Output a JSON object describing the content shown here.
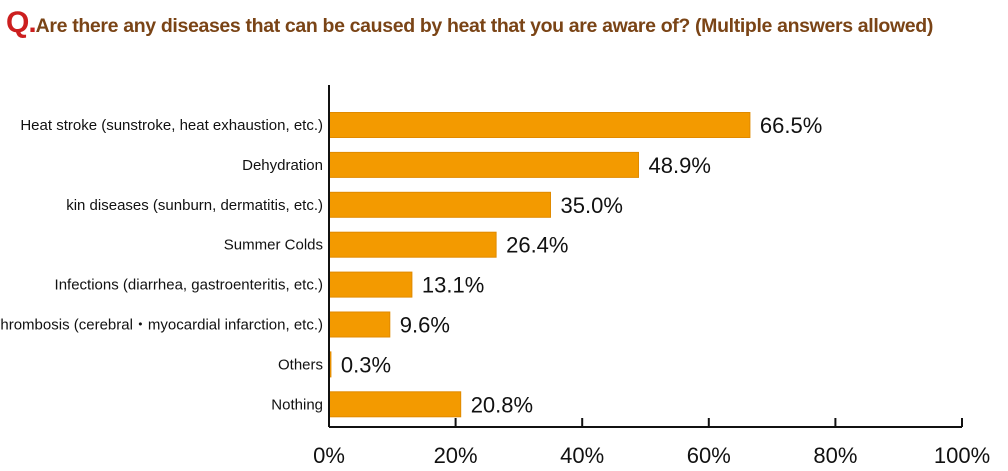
{
  "title": {
    "prefix": "Q.",
    "text": "Are there any diseases that can be caused by heat that you are aware of? (Multiple answers allowed)"
  },
  "colors": {
    "bar_fill": "#f39a00",
    "bar_stroke": "#e08a00",
    "title_prefix": "#cc1f1f",
    "title_text": "#7a4416",
    "axis": "#111111"
  },
  "chart_data": {
    "type": "bar",
    "orientation": "horizontal",
    "categories": [
      "Heat stroke (sunstroke, heat exhaustion, etc.)",
      "Dehydration",
      "kin diseases (sunburn, dermatitis, etc.)",
      "Summer Colds",
      "Infections (diarrhea, gastroenteritis, etc.)",
      "Thrombosis (cerebral・myocardial infarction, etc.)",
      "Others",
      "Nothing"
    ],
    "values": [
      66.5,
      48.9,
      35.0,
      26.4,
      13.1,
      9.6,
      0.3,
      20.8
    ],
    "value_labels": [
      "66.5%",
      "48.9%",
      "35.0%",
      "26.4%",
      "13.1%",
      "9.6%",
      "0.3%",
      "20.8%"
    ],
    "xlim": [
      0,
      100
    ],
    "x_ticks": [
      0,
      20,
      40,
      60,
      80,
      100
    ],
    "x_tick_labels": [
      "0%",
      "20%",
      "40%",
      "60%",
      "80%",
      "100%"
    ],
    "grid": false,
    "legend": "none"
  }
}
